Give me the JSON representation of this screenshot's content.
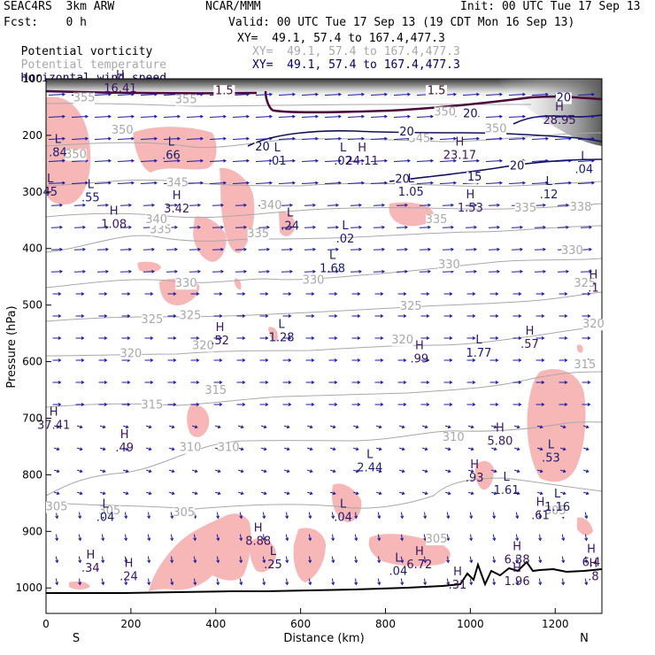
{
  "header": {
    "model": "SEAC4RS  3km ARW",
    "fcst": "Fcst:    0 h",
    "center": "NCAR/MMM",
    "init": "Init: 00 UTC Tue 17 Sep 13",
    "valid": "Valid: 00 UTC Tue 17 Sep 13 (19 CDT Mon 16 Sep 13)",
    "fields": [
      {
        "label": "Potential vorticity",
        "xy": "XY=  49.1, 57.4 to 167.4,477.3",
        "color": "#000000"
      },
      {
        "label": "Potential temperature",
        "xy": "XY=  49.1, 57.4 to 167.4,477.3",
        "color": "#a8a8a8"
      },
      {
        "label": "Horizontal wind speed",
        "xy": "XY=  49.1, 57.4 to 167.4,477.3",
        "color": "#00006a"
      }
    ]
  },
  "chart_data": {
    "type": "cross-section",
    "xlabel": "Distance (km)",
    "ylabel": "Pressure (hPa)",
    "xlim": [
      0,
      1310
    ],
    "ylim": [
      1045,
      100
    ],
    "x_ticks": [
      "0",
      "200",
      "400",
      "600",
      "800",
      "1000",
      "1200"
    ],
    "y_ticks": [
      "100",
      "200",
      "300",
      "400",
      "500",
      "600",
      "700",
      "800",
      "900",
      "1000"
    ],
    "x_end_labels": {
      "left": "S",
      "right": "N"
    },
    "colors": {
      "theta": "#a8a8a8",
      "wind": "#10105e",
      "pv_fill": "#f7b7b7",
      "arrows": "#1a1aa0",
      "terrain": "#000000",
      "tropopause": "#4a0a3c"
    },
    "potential_temperature": {
      "levels": [
        305,
        310,
        315,
        320,
        325,
        330,
        335,
        340,
        345,
        350,
        355
      ],
      "labels": [
        {
          "x": 150,
          "p": 870,
          "text": "305"
        },
        {
          "x": 325,
          "p": 873,
          "text": "305"
        },
        {
          "x": 25,
          "p": 863,
          "text": "305"
        },
        {
          "x": 920,
          "p": 920,
          "text": "305"
        },
        {
          "x": 1200,
          "p": 870,
          "text": "305"
        },
        {
          "x": 340,
          "p": 758,
          "text": "310"
        },
        {
          "x": 430,
          "p": 758,
          "text": "310"
        },
        {
          "x": 960,
          "p": 740,
          "text": "310"
        },
        {
          "x": 250,
          "p": 683,
          "text": "315"
        },
        {
          "x": 400,
          "p": 657,
          "text": "315"
        },
        {
          "x": 1270,
          "p": 612,
          "text": "315"
        },
        {
          "x": 200,
          "p": 592,
          "text": "320"
        },
        {
          "x": 370,
          "p": 578,
          "text": "320"
        },
        {
          "x": 840,
          "p": 568,
          "text": "320"
        },
        {
          "x": 1290,
          "p": 540,
          "text": "320"
        },
        {
          "x": 250,
          "p": 532,
          "text": "325"
        },
        {
          "x": 340,
          "p": 525,
          "text": "325"
        },
        {
          "x": 860,
          "p": 508,
          "text": "325"
        },
        {
          "x": 1270,
          "p": 468,
          "text": "325"
        },
        {
          "x": 330,
          "p": 468,
          "text": "330"
        },
        {
          "x": 630,
          "p": 462,
          "text": "330"
        },
        {
          "x": 950,
          "p": 435,
          "text": "330"
        },
        {
          "x": 1240,
          "p": 410,
          "text": "330"
        },
        {
          "x": 270,
          "p": 373,
          "text": "335"
        },
        {
          "x": 500,
          "p": 380,
          "text": "335"
        },
        {
          "x": 920,
          "p": 355,
          "text": "335"
        },
        {
          "x": 1130,
          "p": 335,
          "text": "335"
        },
        {
          "x": 260,
          "p": 355,
          "text": "340"
        },
        {
          "x": 530,
          "p": 330,
          "text": "340"
        },
        {
          "x": 1260,
          "p": 333,
          "text": "338"
        },
        {
          "x": 310,
          "p": 290,
          "text": "345"
        },
        {
          "x": 70,
          "p": 240,
          "text": "350"
        },
        {
          "x": 180,
          "p": 197,
          "text": "350"
        },
        {
          "x": 1060,
          "p": 195,
          "text": "350"
        },
        {
          "x": 880,
          "p": 212,
          "text": "345"
        },
        {
          "x": 90,
          "p": 140,
          "text": "355"
        },
        {
          "x": 330,
          "p": 143,
          "text": "355"
        },
        {
          "x": 940,
          "p": 165,
          "text": "350"
        }
      ]
    },
    "wind_speed": {
      "levels": [
        15,
        20
      ],
      "labels": [
        {
          "x": 510,
          "p": 227,
          "text": "20"
        },
        {
          "x": 840,
          "p": 284,
          "text": "20"
        },
        {
          "x": 850,
          "p": 200,
          "text": "20"
        },
        {
          "x": 1010,
          "p": 280,
          "text": "15"
        },
        {
          "x": 1110,
          "p": 260,
          "text": "20"
        },
        {
          "x": 1000,
          "p": 168,
          "text": "20"
        },
        {
          "x": 1220,
          "p": 140,
          "text": "20"
        }
      ]
    },
    "potential_vorticity": {
      "levels": [
        1.5
      ],
      "labels": [
        {
          "x": 420,
          "p": 127,
          "text": "1.5"
        },
        {
          "x": 920,
          "p": 127,
          "text": "1.5"
        }
      ]
    },
    "extrema": [
      {
        "type": "H",
        "x": 175,
        "p": 122,
        "text": "16.41"
      },
      {
        "type": "L",
        "x": 28,
        "p": 235,
        "text": ".84"
      },
      {
        "type": "L",
        "x": 295,
        "p": 240,
        "text": ".66"
      },
      {
        "type": "L",
        "x": 10,
        "p": 305,
        "text": "45"
      },
      {
        "type": "L",
        "x": 105,
        "p": 315,
        "text": ".55"
      },
      {
        "type": "H",
        "x": 308,
        "p": 335,
        "text": "3.42"
      },
      {
        "type": "H",
        "x": 160,
        "p": 362,
        "text": "1.08"
      },
      {
        "type": "L",
        "x": 575,
        "p": 365,
        "text": ".24"
      },
      {
        "type": "L",
        "x": 705,
        "p": 388,
        "text": ".02"
      },
      {
        "type": "L",
        "x": 675,
        "p": 440,
        "text": "1.68"
      },
      {
        "type": "L",
        "x": 545,
        "p": 250,
        "text": ".01"
      },
      {
        "type": "L",
        "x": 700,
        "p": 250,
        "text": ".02"
      },
      {
        "type": "H",
        "x": 745,
        "p": 250,
        "text": "24.11"
      },
      {
        "type": "H",
        "x": 975,
        "p": 240,
        "text": "23.17"
      },
      {
        "type": "L",
        "x": 860,
        "p": 305,
        "text": "1.05"
      },
      {
        "type": "H",
        "x": 1000,
        "p": 333,
        "text": "1.53"
      },
      {
        "type": "L",
        "x": 1185,
        "p": 310,
        "text": ".12"
      },
      {
        "type": "L",
        "x": 1268,
        "p": 265,
        "text": ".04"
      },
      {
        "type": "H",
        "x": 1210,
        "p": 178,
        "text": "28.95"
      },
      {
        "type": "H",
        "x": 1290,
        "p": 475,
        "text": ".1"
      },
      {
        "type": "H",
        "x": 410,
        "p": 568,
        "text": ".52"
      },
      {
        "type": "L",
        "x": 555,
        "p": 562,
        "text": "1.28"
      },
      {
        "type": "H",
        "x": 880,
        "p": 600,
        "text": ".99"
      },
      {
        "type": "L",
        "x": 1020,
        "p": 590,
        "text": "1.77"
      },
      {
        "type": "H",
        "x": 1140,
        "p": 574,
        "text": ".57"
      },
      {
        "type": "H",
        "x": 18,
        "p": 717,
        "text": "37.41"
      },
      {
        "type": "H",
        "x": 185,
        "p": 757,
        "text": ".49"
      },
      {
        "type": "H",
        "x": 1070,
        "p": 745,
        "text": "5.80"
      },
      {
        "type": "L",
        "x": 1190,
        "p": 775,
        "text": ".53"
      },
      {
        "type": "L",
        "x": 763,
        "p": 792,
        "text": "2.44"
      },
      {
        "type": "H",
        "x": 1010,
        "p": 810,
        "text": ".93"
      },
      {
        "type": "L",
        "x": 1085,
        "p": 832,
        "text": "1.61"
      },
      {
        "type": "L",
        "x": 1205,
        "p": 862,
        "text": "1.16"
      },
      {
        "type": "H",
        "x": 1165,
        "p": 877,
        "text": ".61"
      },
      {
        "type": "L",
        "x": 140,
        "p": 880,
        "text": ".04"
      },
      {
        "type": "L",
        "x": 700,
        "p": 880,
        "text": ".04"
      },
      {
        "type": "H",
        "x": 500,
        "p": 922,
        "text": "8.88"
      },
      {
        "type": "L",
        "x": 535,
        "p": 964,
        "text": ".25"
      },
      {
        "type": "H",
        "x": 105,
        "p": 970,
        "text": ".34"
      },
      {
        "type": "H",
        "x": 195,
        "p": 985,
        "text": ".24"
      },
      {
        "type": "L",
        "x": 830,
        "p": 975,
        "text": ".04"
      },
      {
        "type": "H",
        "x": 880,
        "p": 964,
        "text": "6.72"
      },
      {
        "type": "H",
        "x": 1110,
        "p": 955,
        "text": "6.38"
      },
      {
        "type": "H",
        "x": 1110,
        "p": 993,
        "text": "1.96"
      },
      {
        "type": "H",
        "x": 970,
        "p": 1000,
        "text": ".31"
      },
      {
        "type": "H",
        "x": 1285,
        "p": 960,
        "text": "6.4"
      },
      {
        "type": "H",
        "x": 1290,
        "p": 985,
        "text": ".8"
      }
    ]
  }
}
